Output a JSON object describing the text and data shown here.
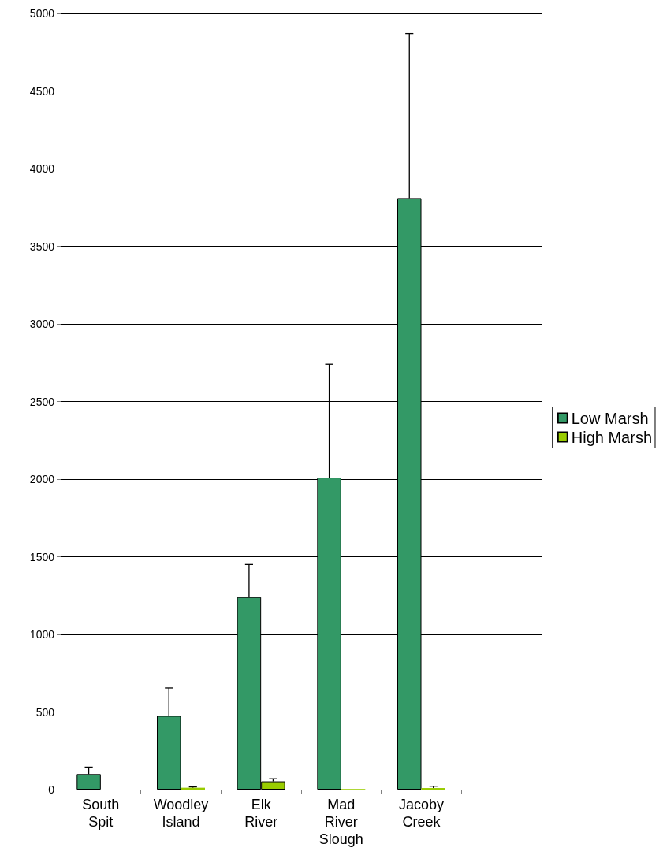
{
  "chart_data": {
    "type": "bar",
    "categories": [
      "South Spit",
      "Woodley Island",
      "Elk River",
      "Mad River Slough",
      "Jacoby Creek",
      null
    ],
    "series": [
      {
        "name": "Low Marsh",
        "color": "#339966",
        "values": [
          100,
          475,
          1240,
          2010,
          3810,
          null
        ],
        "errors": [
          [
            100,
            145
          ],
          [
            475,
            655
          ],
          [
            1240,
            1450
          ],
          [
            2010,
            2740
          ],
          [
            3810,
            4870
          ],
          null
        ]
      },
      {
        "name": "High Marsh",
        "color": "#99cc00",
        "values": [
          null,
          12,
          53,
          4,
          10,
          null
        ],
        "errors": [
          null,
          [
            12,
            17
          ],
          [
            53,
            70
          ],
          null,
          [
            10,
            22
          ],
          null
        ]
      }
    ],
    "ylim": [
      0,
      5000
    ],
    "yticks": [
      0,
      500,
      1000,
      1500,
      2000,
      2500,
      3000,
      3500,
      4000,
      4500,
      5000
    ],
    "grid": "y",
    "legend": "right"
  }
}
